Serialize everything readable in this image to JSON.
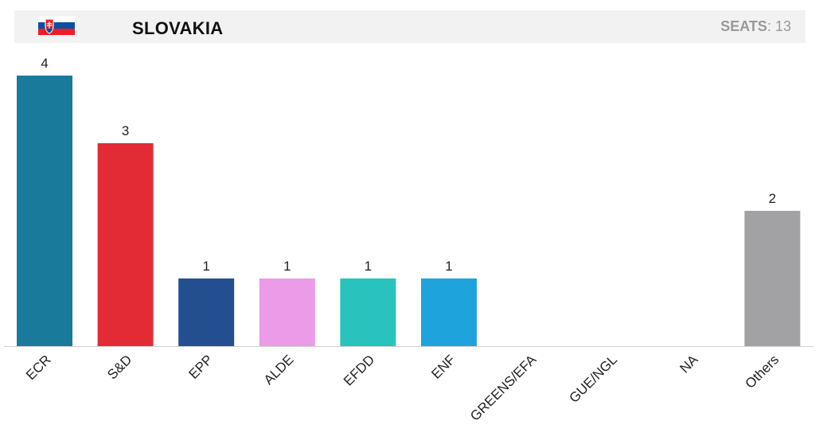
{
  "header": {
    "country": "SLOVAKIA",
    "seats_label": "SEATS",
    "seats_sep": ": ",
    "seats_value": "13"
  },
  "flag": {
    "stripes": [
      "#ffffff",
      "#0b4ea2",
      "#ee1c25"
    ],
    "name": "slovakia-flag"
  },
  "chart_data": {
    "type": "bar",
    "categories": [
      "ECR",
      "S&D",
      "EPP",
      "ALDE",
      "EFDD",
      "ENF",
      "GREENS/EFA",
      "GUE/NGL",
      "NA",
      "Others"
    ],
    "values": [
      4,
      3,
      1,
      1,
      1,
      1,
      0,
      0,
      0,
      2
    ],
    "data_labels": [
      "4",
      "3",
      "1",
      "1",
      "1",
      "1",
      "",
      "",
      "",
      "2"
    ],
    "colors": [
      "#1a7a9c",
      "#e32b35",
      "#234f91",
      "#eb9be8",
      "#27c3bc",
      "#1ea3dd",
      "#8bc34a",
      "#a3262f",
      "#999999",
      "#a2a2a4"
    ],
    "ylim": [
      0,
      4
    ],
    "grid": false,
    "legend": "none"
  }
}
